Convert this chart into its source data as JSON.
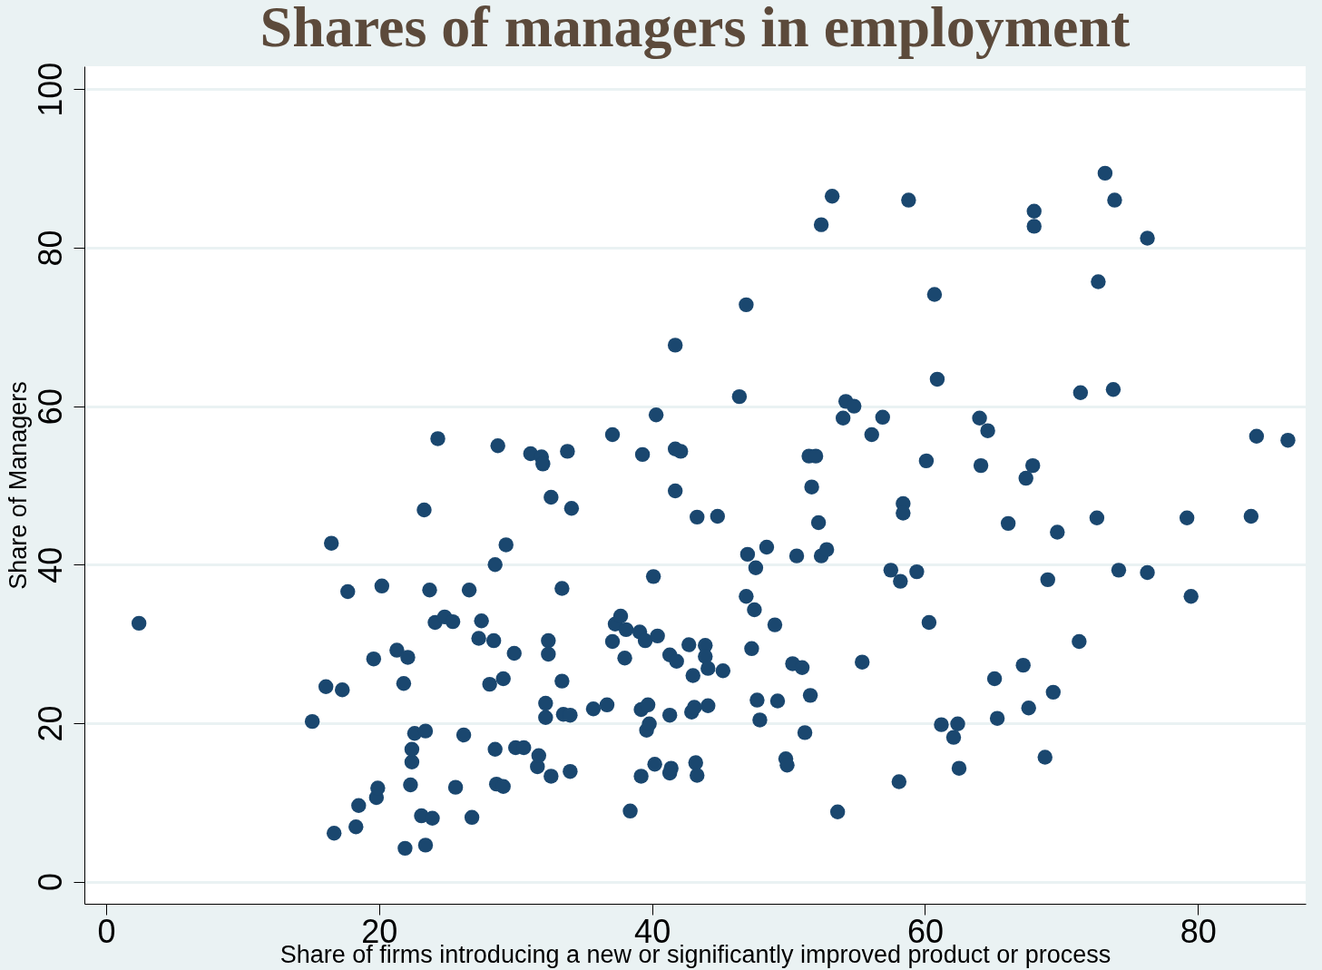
{
  "chart_data": {
    "type": "scatter",
    "title": "Shares of managers in employment",
    "xlabel": "Share of firms introducing a new or significantly improved product or process",
    "ylabel": "Share of Managers",
    "xlim": [
      -1.6,
      87.9
    ],
    "ylim": [
      -2.8,
      102.9
    ],
    "xticks": [
      0,
      20,
      40,
      60,
      80
    ],
    "yticks": [
      0,
      20,
      40,
      60,
      80,
      100
    ],
    "grid": "y",
    "marker": "circle",
    "series": [
      {
        "color": "#1a476f",
        "x": [
          2.4,
          15.1,
          16.1,
          16.5,
          16.7,
          17.3,
          17.7,
          18.3,
          18.5,
          19.6,
          19.8,
          19.9,
          20.2,
          21.3,
          21.8,
          21.9,
          22.1,
          22.3,
          22.4,
          22.4,
          22.6,
          23.1,
          23.3,
          23.4,
          23.4,
          23.7,
          23.9,
          24.1,
          24.3,
          24.8,
          25.4,
          25.6,
          26.2,
          26.6,
          26.8,
          27.3,
          27.5,
          28.1,
          28.4,
          28.5,
          28.5,
          28.6,
          28.7,
          29.1,
          29.1,
          29.3,
          29.9,
          30.0,
          30.6,
          31.1,
          31.6,
          31.7,
          31.9,
          32.0,
          32.2,
          32.2,
          32.4,
          32.4,
          32.6,
          32.6,
          33.4,
          33.4,
          33.5,
          33.8,
          34.0,
          34.0,
          34.1,
          35.7,
          36.7,
          37.1,
          37.1,
          37.3,
          37.7,
          38.0,
          38.1,
          38.4,
          39.1,
          39.2,
          39.2,
          39.3,
          39.5,
          39.6,
          39.7,
          39.8,
          40.1,
          40.2,
          40.3,
          40.4,
          41.3,
          41.3,
          41.3,
          41.4,
          41.7,
          41.7,
          41.7,
          41.8,
          42.1,
          42.7,
          42.9,
          43.0,
          43.1,
          43.2,
          43.3,
          43.3,
          43.9,
          43.9,
          44.1,
          44.1,
          44.8,
          45.2,
          46.4,
          46.9,
          46.9,
          47.0,
          47.3,
          47.5,
          47.6,
          47.7,
          47.9,
          48.4,
          49.0,
          49.2,
          49.8,
          49.9,
          50.3,
          50.6,
          51.0,
          51.2,
          51.5,
          51.6,
          51.7,
          52.0,
          52.2,
          52.4,
          52.4,
          52.8,
          53.2,
          53.6,
          54.0,
          54.2,
          54.8,
          55.4,
          56.1,
          56.9,
          57.5,
          58.1,
          58.2,
          58.4,
          58.4,
          58.8,
          59.4,
          60.1,
          60.3,
          60.7,
          60.9,
          61.2,
          62.1,
          62.4,
          62.5,
          64.0,
          64.1,
          64.6,
          65.1,
          65.3,
          66.1,
          67.2,
          67.4,
          67.6,
          67.9,
          68.0,
          68.0,
          68.8,
          69.0,
          69.4,
          69.7,
          71.3,
          71.4,
          72.6,
          72.7,
          73.2,
          73.8,
          73.9,
          74.2,
          76.3,
          76.3,
          79.2,
          79.5,
          83.9,
          84.3,
          86.6
        ],
        "values": [
          32.6,
          20.2,
          24.6,
          42.7,
          6.1,
          24.2,
          36.6,
          6.9,
          9.6,
          28.1,
          10.6,
          11.8,
          37.3,
          29.2,
          25.0,
          4.2,
          28.3,
          12.2,
          15.1,
          16.7,
          18.7,
          8.3,
          46.9,
          19.0,
          4.6,
          36.8,
          8.0,
          32.7,
          55.9,
          33.4,
          32.8,
          11.9,
          18.5,
          36.8,
          8.1,
          30.7,
          32.9,
          24.9,
          30.4,
          40.0,
          16.7,
          12.3,
          55.0,
          25.6,
          12.0,
          42.5,
          28.8,
          16.9,
          16.9,
          54.0,
          14.5,
          15.9,
          53.6,
          52.7,
          22.5,
          20.7,
          30.4,
          28.7,
          13.3,
          48.5,
          37.0,
          25.3,
          21.1,
          54.3,
          21.0,
          13.9,
          47.1,
          21.8,
          22.3,
          30.3,
          56.4,
          32.5,
          33.5,
          28.2,
          31.8,
          8.9,
          31.5,
          13.3,
          21.7,
          53.9,
          30.4,
          19.1,
          22.3,
          19.9,
          38.5,
          14.8,
          58.9,
          31.0,
          28.6,
          13.7,
          21.0,
          14.3,
          67.7,
          54.6,
          49.3,
          27.8,
          54.3,
          29.9,
          21.4,
          26.0,
          22.0,
          15.0,
          13.4,
          46.0,
          29.8,
          28.4,
          26.9,
          22.2,
          46.1,
          26.6,
          61.2,
          72.8,
          36.0,
          41.3,
          29.4,
          34.3,
          39.6,
          22.9,
          20.4,
          42.2,
          32.4,
          22.8,
          15.5,
          14.7,
          27.5,
          41.1,
          27.0,
          18.8,
          53.7,
          23.5,
          49.8,
          53.7,
          45.3,
          82.9,
          41.1,
          41.9,
          86.5,
          8.8,
          58.5,
          60.6,
          60.0,
          27.7,
          56.4,
          58.6,
          39.3,
          12.6,
          37.9,
          47.7,
          46.5,
          86.0,
          39.1,
          53.1,
          32.7,
          74.1,
          63.4,
          19.8,
          18.2,
          19.9,
          14.3,
          58.5,
          52.5,
          56.9,
          25.6,
          20.6,
          45.2,
          27.3,
          50.9,
          21.9,
          52.5,
          84.6,
          82.7,
          15.7,
          38.1,
          23.9,
          44.1,
          30.3,
          61.7,
          45.9,
          75.7,
          89.4,
          62.1,
          86.0,
          39.3,
          39.0,
          81.2,
          45.9,
          36.0,
          46.1,
          56.2,
          55.7
        ]
      }
    ]
  }
}
